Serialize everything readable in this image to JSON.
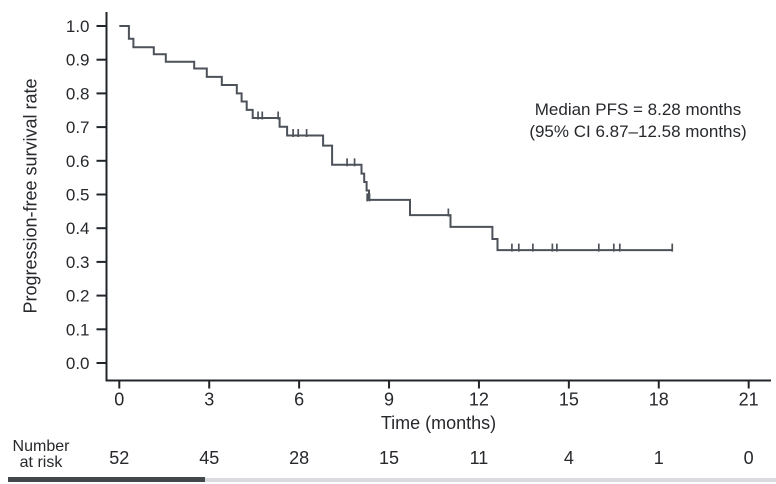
{
  "figure": {
    "annotation": {
      "line1": "Median PFS = 8.28 months",
      "line2": "(95% CI 6.87–12.58 months)"
    },
    "risk_label": {
      "line1": "Number",
      "line2": "at risk"
    }
  },
  "chart_data": {
    "type": "line",
    "subtype": "kaplan-meier-step-curve",
    "title": "",
    "xlabel": "Time (months)",
    "ylabel": "Progression-free survival rate",
    "xlim": [
      0,
      21
    ],
    "ylim": [
      0.0,
      1.0
    ],
    "x_ticks": [
      0,
      3,
      6,
      9,
      12,
      15,
      18,
      21
    ],
    "y_ticks": [
      "1.0",
      "0.9",
      "0.8",
      "0.7",
      "0.6",
      "0.5",
      "0.4",
      "0.3",
      "0.2",
      "0.1",
      "0.0"
    ],
    "grid": false,
    "legend": "none",
    "annotation_lines": [
      "Median PFS = 8.28 months",
      "(95% CI 6.87–12.58 months)"
    ],
    "median_pfs_months": 8.28,
    "ci95_months": [
      6.87,
      12.58
    ],
    "steps": [
      [
        0.0,
        1.0
      ],
      [
        0.32,
        0.962
      ],
      [
        0.47,
        0.937
      ],
      [
        1.15,
        0.916
      ],
      [
        1.55,
        0.894
      ],
      [
        2.5,
        0.874
      ],
      [
        2.92,
        0.849
      ],
      [
        3.42,
        0.825
      ],
      [
        3.92,
        0.8
      ],
      [
        4.08,
        0.776
      ],
      [
        4.25,
        0.751
      ],
      [
        4.45,
        0.727
      ],
      [
        5.35,
        0.701
      ],
      [
        5.6,
        0.675
      ],
      [
        6.8,
        0.645
      ],
      [
        7.1,
        0.588
      ],
      [
        8.08,
        0.562
      ],
      [
        8.17,
        0.537
      ],
      [
        8.25,
        0.512
      ],
      [
        8.33,
        0.484
      ],
      [
        9.7,
        0.439
      ],
      [
        11.05,
        0.404
      ],
      [
        12.45,
        0.368
      ],
      [
        12.62,
        0.335
      ]
    ],
    "curve_end_time": 18.45,
    "censor_marks": [
      [
        4.63,
        0.727
      ],
      [
        4.77,
        0.727
      ],
      [
        5.3,
        0.727
      ],
      [
        5.8,
        0.675
      ],
      [
        5.97,
        0.675
      ],
      [
        6.25,
        0.675
      ],
      [
        7.6,
        0.588
      ],
      [
        7.85,
        0.588
      ],
      [
        8.27,
        0.484
      ],
      [
        8.35,
        0.484
      ],
      [
        10.98,
        0.439
      ],
      [
        13.1,
        0.335
      ],
      [
        13.33,
        0.335
      ],
      [
        13.8,
        0.335
      ],
      [
        14.45,
        0.335
      ],
      [
        14.6,
        0.335
      ],
      [
        16.0,
        0.335
      ],
      [
        16.5,
        0.335
      ],
      [
        16.7,
        0.335
      ],
      [
        18.45,
        0.335
      ]
    ],
    "number_at_risk": {
      "times": [
        0,
        3,
        6,
        9,
        12,
        15,
        18,
        21
      ],
      "values": [
        52,
        45,
        28,
        15,
        11,
        4,
        1,
        0
      ]
    },
    "colors": {
      "curve": "#4d525a",
      "axis": "#212428",
      "text": "#26282c"
    }
  }
}
